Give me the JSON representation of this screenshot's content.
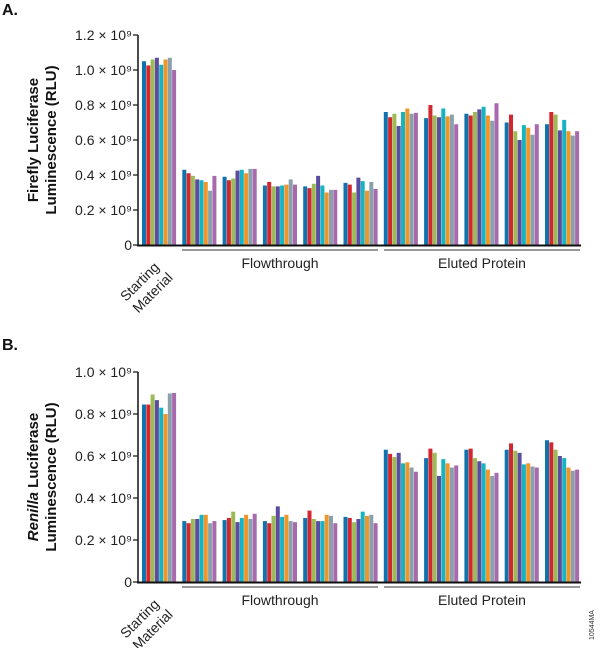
{
  "figure_id": "10544MA",
  "colors": [
    "#1173ad",
    "#d3262e",
    "#9cbb56",
    "#5c4c9f",
    "#18b3c0",
    "#ee962a",
    "#8aa0ad",
    "#a86aad"
  ],
  "chart_data": [
    {
      "type": "bar",
      "panel_label": "A.",
      "ylabel_line1": "Firefly Luciferase",
      "ylabel_line2": "Luminescence (RLU)",
      "ylim": [
        0,
        1200000000.0
      ],
      "yticks": [
        0,
        200000000.0,
        400000000.0,
        600000000.0,
        800000000.0,
        1000000000.0,
        1200000000.0
      ],
      "ytick_labels": [
        "0",
        "0.2 × 10⁹",
        "0.4 × 10⁹",
        "0.6 × 10⁹",
        "0.8 × 10⁹",
        "1.0 × 10⁹",
        "1.2 × 10⁹"
      ],
      "category_labels": {
        "starting_line1": "Starting",
        "starting_line2": "Material",
        "flowthrough": "Flowthrough",
        "eluted": "Eluted Protein"
      },
      "groups": [
        {
          "category": "Starting Material",
          "values": [
            1050000000.0,
            1026000000.0,
            1060000000.0,
            1070000000.0,
            1030000000.0,
            1060000000.0,
            1070000000.0,
            1000000000.0
          ]
        },
        {
          "category": "Flowthrough",
          "values": [
            430000000.0,
            410000000.0,
            395000000.0,
            375000000.0,
            370000000.0,
            360000000.0,
            310000000.0,
            395000000.0
          ]
        },
        {
          "category": "Flowthrough",
          "values": [
            390000000.0,
            370000000.0,
            380000000.0,
            425000000.0,
            430000000.0,
            410000000.0,
            435000000.0,
            435000000.0
          ]
        },
        {
          "category": "Flowthrough",
          "values": [
            340000000.0,
            360000000.0,
            335000000.0,
            335000000.0,
            340000000.0,
            345000000.0,
            375000000.0,
            345000000.0
          ]
        },
        {
          "category": "Flowthrough",
          "values": [
            335000000.0,
            325000000.0,
            350000000.0,
            395000000.0,
            340000000.0,
            300000000.0,
            315000000.0,
            315000000.0
          ]
        },
        {
          "category": "Flowthrough",
          "values": [
            355000000.0,
            345000000.0,
            300000000.0,
            385000000.0,
            365000000.0,
            310000000.0,
            360000000.0,
            320000000.0
          ]
        },
        {
          "category": "Eluted Protein",
          "values": [
            760000000.0,
            730000000.0,
            750000000.0,
            680000000.0,
            760000000.0,
            780000000.0,
            750000000.0,
            755000000.0
          ]
        },
        {
          "category": "Eluted Protein",
          "values": [
            725000000.0,
            800000000.0,
            740000000.0,
            730000000.0,
            780000000.0,
            735000000.0,
            745000000.0,
            690000000.0
          ]
        },
        {
          "category": "Eluted Protein",
          "values": [
            750000000.0,
            740000000.0,
            760000000.0,
            775000000.0,
            790000000.0,
            740000000.0,
            710000000.0,
            810000000.0
          ]
        },
        {
          "category": "Eluted Protein",
          "values": [
            700000000.0,
            745000000.0,
            650000000.0,
            600000000.0,
            685000000.0,
            670000000.0,
            630000000.0,
            690000000.0
          ]
        },
        {
          "category": "Eluted Protein",
          "values": [
            690000000.0,
            760000000.0,
            745000000.0,
            655000000.0,
            715000000.0,
            650000000.0,
            625000000.0,
            650000000.0
          ]
        }
      ]
    },
    {
      "type": "bar",
      "panel_label": "B.",
      "ylabel_italic": "Renilla",
      "ylabel_line1_rest": " Luciferase",
      "ylabel_line2": "Luminescence (RLU)",
      "ylim": [
        0,
        1000000000.0
      ],
      "yticks": [
        0,
        200000000.0,
        400000000.0,
        600000000.0,
        800000000.0,
        1000000000.0
      ],
      "ytick_labels": [
        "0",
        "0.2 × 10⁹",
        "0.4 × 10⁹",
        "0.6 × 10⁹",
        "0.8 × 10⁹",
        "1.0 × 10⁹"
      ],
      "category_labels": {
        "starting_line1": "Starting",
        "starting_line2": "Material",
        "flowthrough": "Flowthrough",
        "eluted": "Eluted Protein"
      },
      "groups": [
        {
          "category": "Starting Material",
          "values": [
            845000000.0,
            845000000.0,
            893000000.0,
            866000000.0,
            830000000.0,
            800000000.0,
            898000000.0,
            900000000.0
          ]
        },
        {
          "category": "Flowthrough",
          "values": [
            290000000.0,
            280000000.0,
            300000000.0,
            300000000.0,
            320000000.0,
            320000000.0,
            280000000.0,
            290000000.0
          ]
        },
        {
          "category": "Flowthrough",
          "values": [
            295000000.0,
            305000000.0,
            335000000.0,
            285000000.0,
            305000000.0,
            320000000.0,
            300000000.0,
            325000000.0
          ]
        },
        {
          "category": "Flowthrough",
          "values": [
            290000000.0,
            280000000.0,
            315000000.0,
            360000000.0,
            310000000.0,
            320000000.0,
            290000000.0,
            285000000.0
          ]
        },
        {
          "category": "Flowthrough",
          "values": [
            305000000.0,
            340000000.0,
            300000000.0,
            290000000.0,
            290000000.0,
            320000000.0,
            315000000.0,
            280000000.0
          ]
        },
        {
          "category": "Flowthrough",
          "values": [
            310000000.0,
            305000000.0,
            285000000.0,
            300000000.0,
            335000000.0,
            315000000.0,
            320000000.0,
            280000000.0
          ]
        },
        {
          "category": "Eluted Protein",
          "values": [
            630000000.0,
            610000000.0,
            595000000.0,
            615000000.0,
            565000000.0,
            570000000.0,
            545000000.0,
            525000000.0
          ]
        },
        {
          "category": "Eluted Protein",
          "values": [
            590000000.0,
            635000000.0,
            615000000.0,
            505000000.0,
            585000000.0,
            565000000.0,
            545000000.0,
            555000000.0
          ]
        },
        {
          "category": "Eluted Protein",
          "values": [
            630000000.0,
            635000000.0,
            590000000.0,
            575000000.0,
            565000000.0,
            535000000.0,
            505000000.0,
            520000000.0
          ]
        },
        {
          "category": "Eluted Protein",
          "values": [
            630000000.0,
            660000000.0,
            625000000.0,
            615000000.0,
            560000000.0,
            565000000.0,
            550000000.0,
            545000000.0
          ]
        },
        {
          "category": "Eluted Protein",
          "values": [
            675000000.0,
            665000000.0,
            630000000.0,
            600000000.0,
            590000000.0,
            545000000.0,
            530000000.0,
            535000000.0
          ]
        }
      ]
    }
  ]
}
